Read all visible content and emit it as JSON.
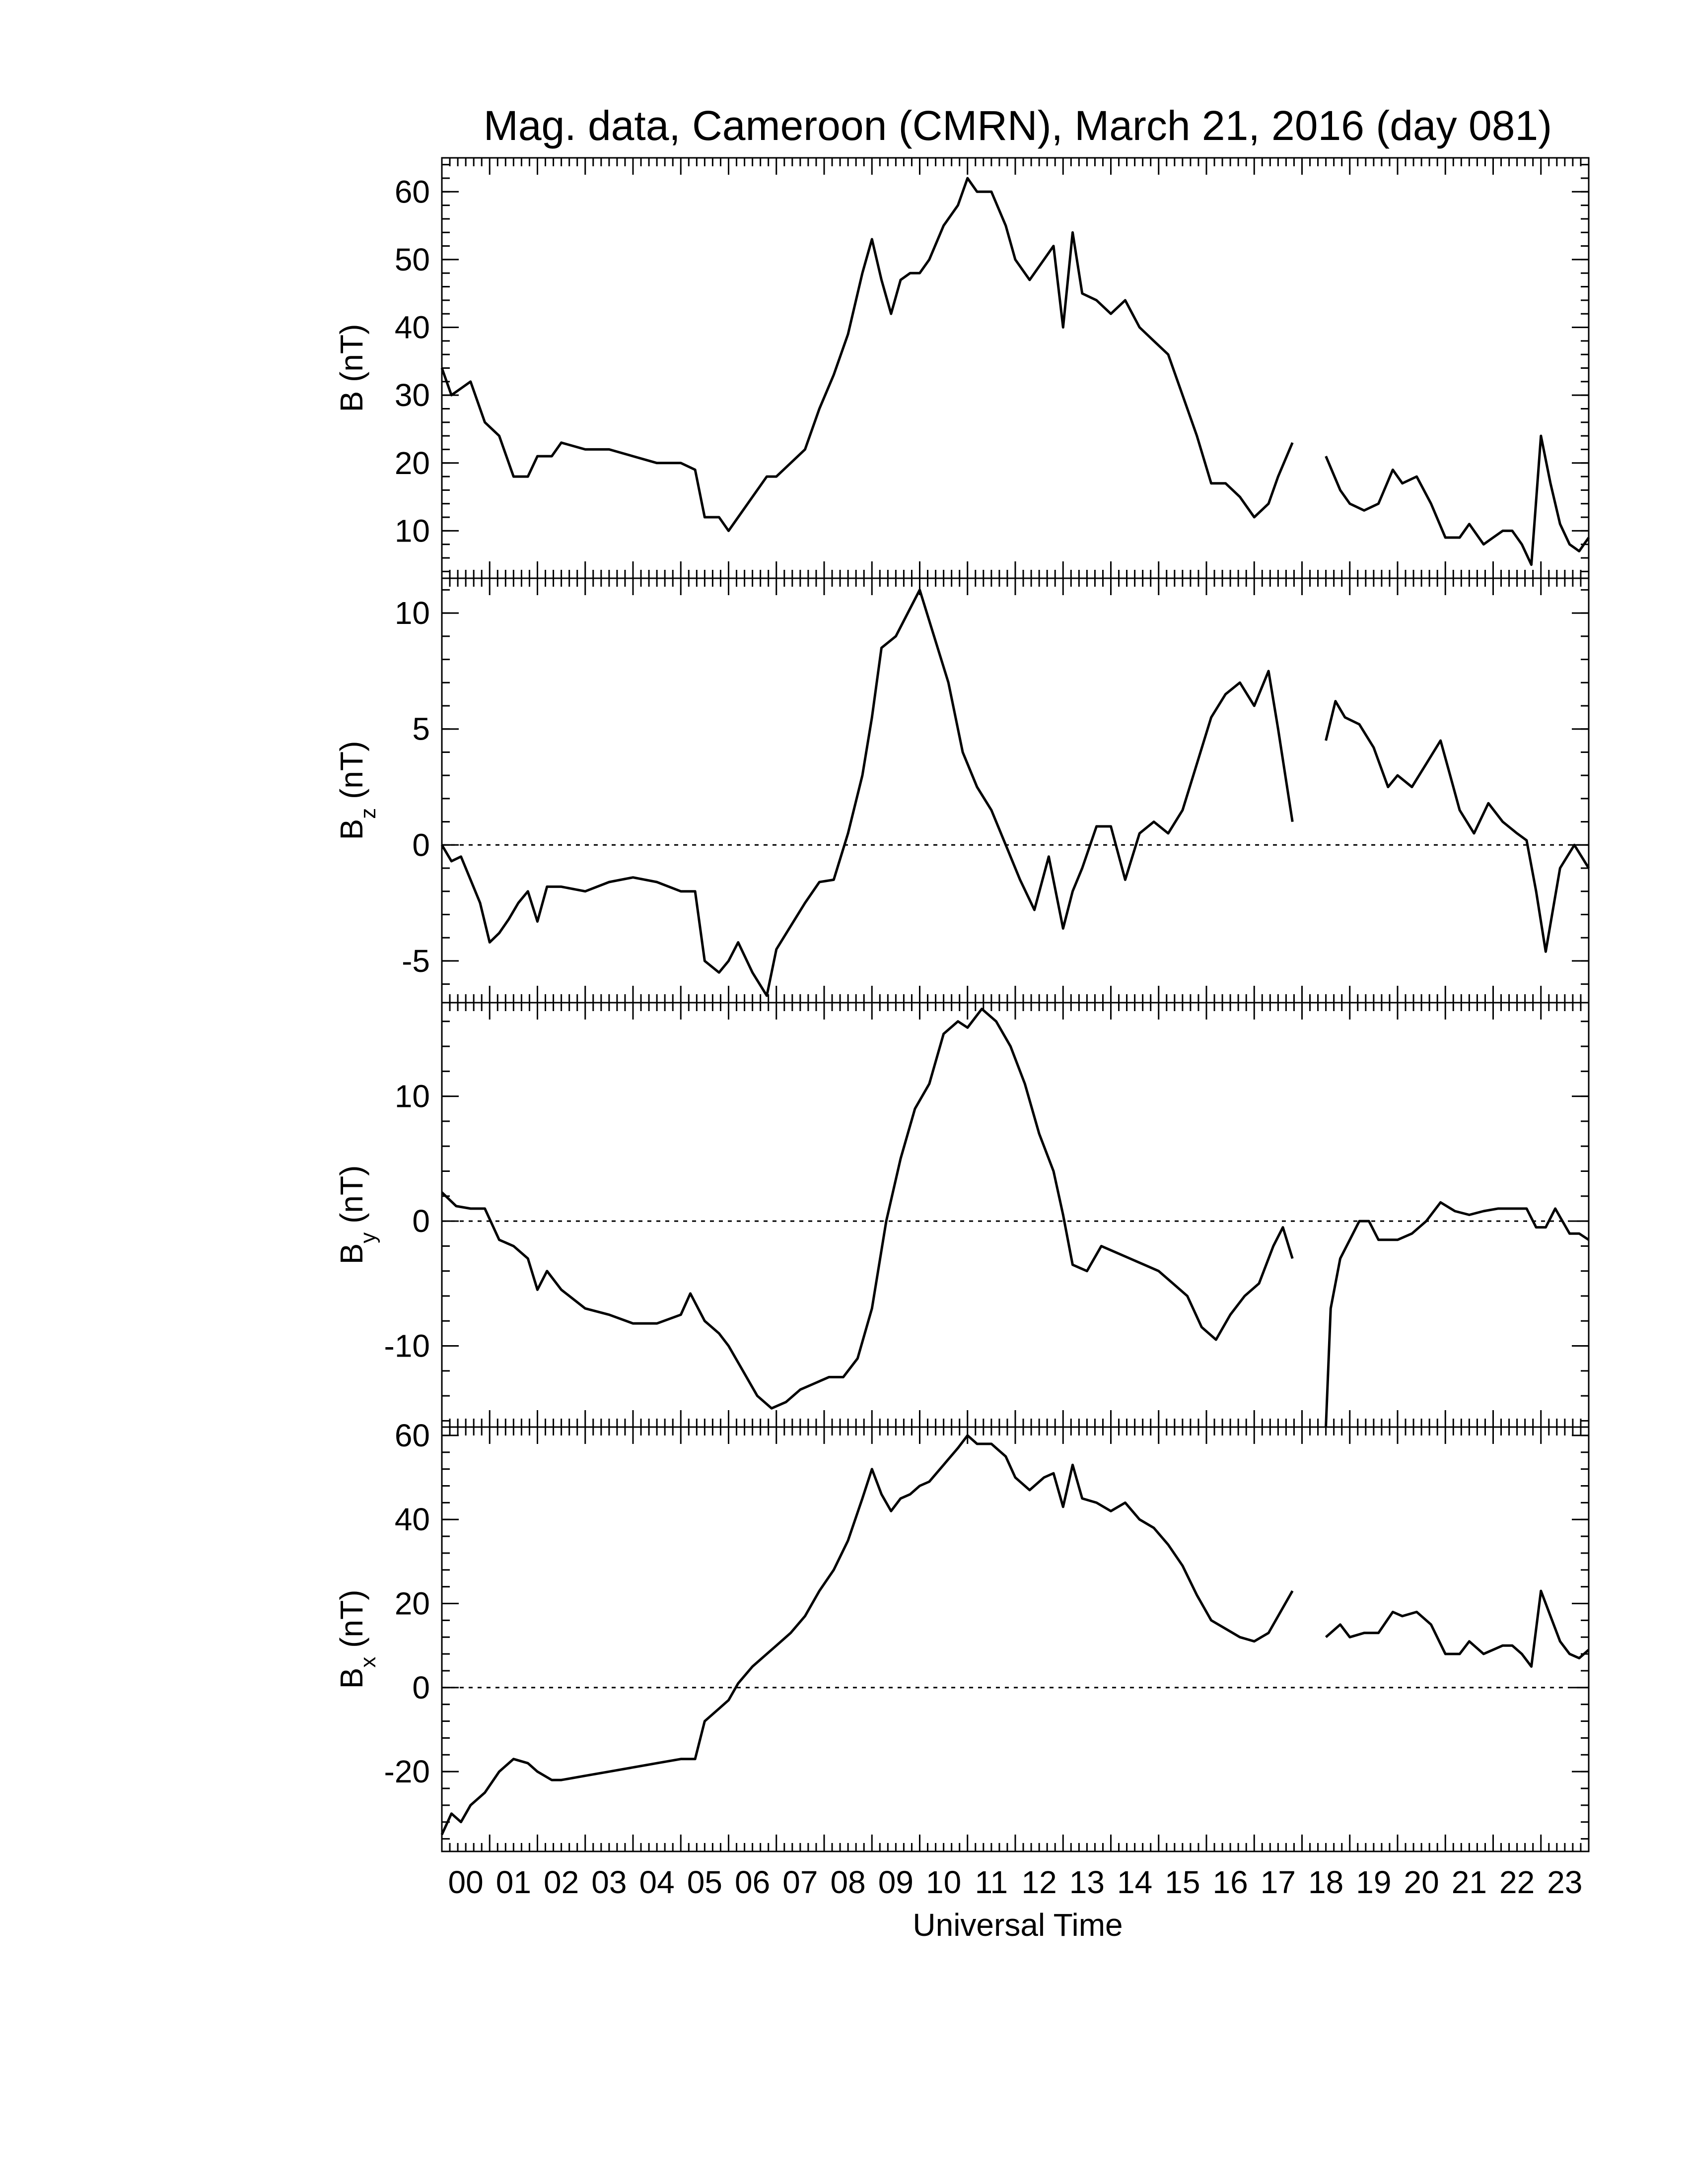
{
  "figure": {
    "title": "Mag. data, Cameroon (CMRN), March 21, 2016 (day 081)",
    "xlabel": "Universal Time",
    "line_color": "#000000",
    "background": "#ffffff"
  },
  "chart_data": [
    {
      "type": "line",
      "panel": "B",
      "ylabel": "B (nT)",
      "ylabel_main": "B (nT)",
      "ylabel_sub": "",
      "ylim": [
        3,
        65
      ],
      "yticks": [
        10,
        20,
        30,
        40,
        50,
        60
      ],
      "zero_line": false,
      "x_unit": "hours UT",
      "xlim": [
        0,
        24
      ],
      "xtick_labels": [
        "00",
        "01",
        "02",
        "03",
        "04",
        "05",
        "06",
        "07",
        "08",
        "09",
        "10",
        "11",
        "12",
        "13",
        "14",
        "15",
        "16",
        "17",
        "18",
        "19",
        "20",
        "21",
        "22",
        "23"
      ],
      "series": [
        {
          "x": [
            0,
            0.2,
            0.4,
            0.6,
            0.9,
            1.2,
            1.5,
            1.8,
            2.0,
            2.3,
            2.5,
            3.0,
            3.5,
            4.0,
            4.5,
            5.0,
            5.3,
            5.5,
            5.8,
            6.0,
            6.2,
            6.5,
            6.8,
            7.0,
            7.3,
            7.6,
            7.9,
            8.2,
            8.5,
            8.8,
            9.0,
            9.2,
            9.4,
            9.6,
            9.8,
            10.0,
            10.2,
            10.5,
            10.8,
            11.0,
            11.2,
            11.5,
            11.8,
            12.0,
            12.3,
            12.6,
            12.8,
            13.0,
            13.2,
            13.4,
            13.7,
            14.0,
            14.3,
            14.6,
            14.9,
            15.2,
            15.5,
            15.8,
            16.1,
            16.4,
            16.7,
            17.0,
            17.3,
            17.5,
            17.8
          ],
          "y": [
            34,
            30,
            31,
            32,
            26,
            24,
            18,
            18,
            21,
            21,
            23,
            22,
            22,
            21,
            20,
            20,
            19,
            12,
            12,
            10,
            12,
            15,
            18,
            18,
            20,
            22,
            28,
            33,
            39,
            48,
            53,
            47,
            42,
            47,
            48,
            48,
            50,
            55,
            58,
            62,
            60,
            60,
            55,
            50,
            47,
            50,
            52,
            40,
            54,
            45,
            44,
            42,
            44,
            40,
            38,
            36,
            30,
            24,
            17,
            17,
            15,
            12,
            14,
            18,
            23
          ]
        },
        {
          "x": [
            18.5,
            18.8,
            19.0,
            19.3,
            19.6,
            19.9,
            20.1,
            20.4,
            20.7,
            21.0,
            21.3,
            21.5,
            21.8,
            22.0,
            22.2,
            22.4,
            22.6,
            22.8,
            23.0,
            23.2,
            23.4,
            23.6,
            23.8,
            24.0
          ],
          "y": [
            21,
            16,
            14,
            13,
            14,
            19,
            17,
            18,
            14,
            9,
            9,
            11,
            8,
            9,
            10,
            10,
            8,
            5,
            24,
            17,
            11,
            8,
            7,
            9
          ]
        }
      ]
    },
    {
      "type": "line",
      "panel": "Bz",
      "ylabel": "Bz (nT)",
      "ylabel_main": "B",
      "ylabel_sub": "z",
      "ylabel_unit": " (nT)",
      "ylim": [
        -6.8,
        11.5
      ],
      "yticks": [
        -5,
        0,
        5,
        10
      ],
      "zero_line": true,
      "series": [
        {
          "x": [
            0,
            0.2,
            0.4,
            0.6,
            0.8,
            1.0,
            1.2,
            1.4,
            1.6,
            1.8,
            2.0,
            2.2,
            2.5,
            3.0,
            3.5,
            4.0,
            4.5,
            5.0,
            5.3,
            5.5,
            5.8,
            6.0,
            6.2,
            6.5,
            6.8,
            7.0,
            7.3,
            7.6,
            7.9,
            8.2,
            8.5,
            8.8,
            9.0,
            9.2,
            9.5,
            9.8,
            10.0,
            10.3,
            10.6,
            10.9,
            11.2,
            11.5,
            11.8,
            12.1,
            12.4,
            12.7,
            13.0,
            13.2,
            13.4,
            13.7,
            14.0,
            14.3,
            14.6,
            14.9,
            15.2,
            15.5,
            15.8,
            16.1,
            16.4,
            16.7,
            17.0,
            17.3,
            17.5,
            17.8
          ],
          "y": [
            0,
            -0.7,
            -0.5,
            -1.5,
            -2.5,
            -4.2,
            -3.8,
            -3.2,
            -2.5,
            -2.0,
            -3.3,
            -1.8,
            -1.8,
            -2.0,
            -1.6,
            -1.4,
            -1.6,
            -2.0,
            -2.0,
            -5.0,
            -5.5,
            -5.0,
            -4.2,
            -5.5,
            -6.5,
            -4.5,
            -3.5,
            -2.5,
            -1.6,
            -1.5,
            0.5,
            3.0,
            5.5,
            8.5,
            9.0,
            10.2,
            11.0,
            9.0,
            7.0,
            4.0,
            2.5,
            1.5,
            0.0,
            -1.5,
            -2.8,
            -0.5,
            -3.6,
            -2.0,
            -1.0,
            0.8,
            0.8,
            -1.5,
            0.5,
            1.0,
            0.5,
            1.5,
            3.5,
            5.5,
            6.5,
            7.0,
            6.0,
            7.5,
            5.0,
            1.0
          ]
        },
        {
          "x": [
            18.5,
            18.7,
            18.9,
            19.2,
            19.5,
            19.8,
            20.0,
            20.3,
            20.6,
            20.9,
            21.1,
            21.3,
            21.6,
            21.9,
            22.2,
            22.5,
            22.7,
            22.9,
            23.1,
            23.4,
            23.7,
            24.0
          ],
          "y": [
            4.5,
            6.2,
            5.5,
            5.2,
            4.2,
            2.5,
            3.0,
            2.5,
            3.5,
            4.5,
            3.0,
            1.5,
            0.5,
            1.8,
            1.0,
            0.5,
            0.2,
            -2.0,
            -4.6,
            -1.0,
            0.0,
            -1.0
          ]
        }
      ]
    },
    {
      "type": "line",
      "panel": "By",
      "ylabel": "By (nT)",
      "ylabel_main": "B",
      "ylabel_sub": "y",
      "ylabel_unit": " (nT)",
      "ylim": [
        -16.5,
        17.5
      ],
      "yticks": [
        -10,
        0,
        10
      ],
      "zero_line": true,
      "series": [
        {
          "x": [
            0,
            0.3,
            0.6,
            0.9,
            1.2,
            1.5,
            1.8,
            2.0,
            2.2,
            2.5,
            3.0,
            3.5,
            4.0,
            4.5,
            5.0,
            5.2,
            5.5,
            5.8,
            6.0,
            6.3,
            6.6,
            6.9,
            7.2,
            7.5,
            7.8,
            8.1,
            8.4,
            8.7,
            9.0,
            9.3,
            9.6,
            9.9,
            10.2,
            10.5,
            10.8,
            11.0,
            11.3,
            11.6,
            11.9,
            12.2,
            12.5,
            12.8,
            13.0,
            13.2,
            13.5,
            13.8,
            14.1,
            14.4,
            14.7,
            15.0,
            15.3,
            15.6,
            15.9,
            16.2,
            16.5,
            16.8,
            17.1,
            17.4,
            17.6,
            17.8
          ],
          "y": [
            2.3,
            1.2,
            1.0,
            1.0,
            -1.5,
            -2.0,
            -3.0,
            -5.5,
            -4.0,
            -5.5,
            -7.0,
            -7.5,
            -8.2,
            -8.2,
            -7.5,
            -5.8,
            -8.0,
            -9.0,
            -10.0,
            -12.0,
            -14.0,
            -15.0,
            -14.5,
            -13.5,
            -13.0,
            -12.5,
            -12.5,
            -11.0,
            -7.0,
            0.0,
            5.0,
            9.0,
            11.0,
            15.0,
            16.0,
            15.5,
            17.0,
            16.0,
            14.0,
            11.0,
            7.0,
            4.0,
            0.5,
            -3.5,
            -4.0,
            -2.0,
            -2.5,
            -3.0,
            -3.5,
            -4.0,
            -5.0,
            -6.0,
            -8.5,
            -9.5,
            -7.5,
            -6.0,
            -5.0,
            -2.0,
            -0.5,
            -3.0
          ]
        },
        {
          "x": [
            18.5,
            18.6,
            18.8,
            19.0,
            19.2,
            19.4,
            19.6,
            19.8,
            20.0,
            20.3,
            20.6,
            20.9,
            21.2,
            21.5,
            21.8,
            22.1,
            22.4,
            22.7,
            22.9,
            23.1,
            23.3,
            23.6,
            23.8,
            24.0
          ],
          "y": [
            -16.5,
            -7.0,
            -3.0,
            -1.5,
            0.0,
            0.0,
            -1.5,
            -1.5,
            -1.5,
            -1.0,
            0.0,
            1.5,
            0.8,
            0.5,
            0.8,
            1.0,
            1.0,
            1.0,
            -0.5,
            -0.5,
            1.0,
            -1.0,
            -1.0,
            -1.5
          ]
        }
      ]
    },
    {
      "type": "line",
      "panel": "Bx",
      "ylabel": "Bx (nT)",
      "ylabel_main": "B",
      "ylabel_sub": "x",
      "ylabel_unit": " (nT)",
      "ylim": [
        -39,
        62
      ],
      "yticks": [
        -20,
        0,
        20,
        40,
        60
      ],
      "zero_line": true,
      "series": [
        {
          "x": [
            0,
            0.2,
            0.4,
            0.6,
            0.9,
            1.2,
            1.5,
            1.8,
            2.0,
            2.3,
            2.5,
            3.0,
            3.5,
            4.0,
            4.5,
            5.0,
            5.3,
            5.5,
            5.8,
            6.0,
            6.2,
            6.5,
            6.8,
            7.0,
            7.3,
            7.6,
            7.9,
            8.2,
            8.5,
            8.8,
            9.0,
            9.2,
            9.4,
            9.6,
            9.8,
            10.0,
            10.2,
            10.5,
            10.8,
            11.0,
            11.2,
            11.5,
            11.8,
            12.0,
            12.3,
            12.6,
            12.8,
            13.0,
            13.2,
            13.4,
            13.7,
            14.0,
            14.3,
            14.6,
            14.9,
            15.2,
            15.5,
            15.8,
            16.1,
            16.4,
            16.7,
            17.0,
            17.3,
            17.5,
            17.8
          ],
          "y": [
            -35,
            -30,
            -32,
            -28,
            -25,
            -20,
            -17,
            -18,
            -20,
            -22,
            -22,
            -21,
            -20,
            -19,
            -18,
            -17,
            -17,
            -8,
            -5,
            -3,
            1,
            5,
            8,
            10,
            13,
            17,
            23,
            28,
            35,
            45,
            52,
            46,
            42,
            45,
            46,
            48,
            49,
            53,
            57,
            60,
            58,
            58,
            55,
            50,
            47,
            50,
            51,
            43,
            53,
            45,
            44,
            42,
            44,
            40,
            38,
            34,
            29,
            22,
            16,
            14,
            12,
            11,
            13,
            17,
            23
          ]
        },
        {
          "x": [
            18.5,
            18.8,
            19.0,
            19.3,
            19.6,
            19.9,
            20.1,
            20.4,
            20.7,
            21.0,
            21.3,
            21.5,
            21.8,
            22.0,
            22.2,
            22.4,
            22.6,
            22.8,
            23.0,
            23.2,
            23.4,
            23.6,
            23.8,
            24.0
          ],
          "y": [
            12,
            15,
            12,
            13,
            13,
            18,
            17,
            18,
            15,
            8,
            8,
            11,
            8,
            9,
            10,
            10,
            8,
            5,
            23,
            17,
            11,
            8,
            7,
            9
          ]
        }
      ]
    }
  ]
}
